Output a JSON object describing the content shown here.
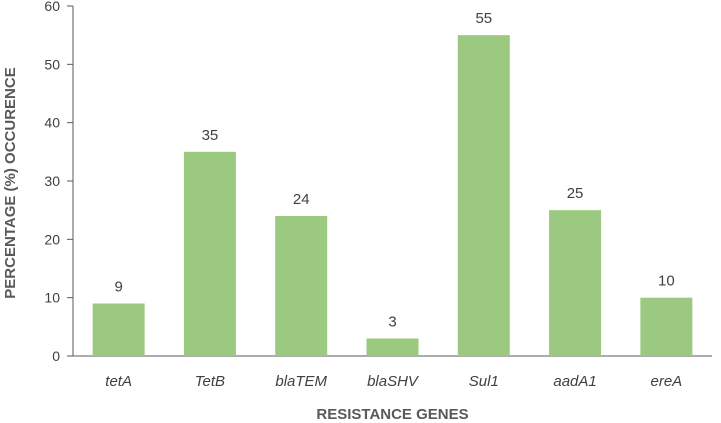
{
  "chart_data": {
    "type": "bar",
    "title": "",
    "xlabel": "RESISTANCE GENES",
    "ylabel": "PERCENTAGE (%) OCCURENCE",
    "categories": [
      "tetA",
      "TetB",
      "blaTEM",
      "blaSHV",
      "Sul1",
      "aadA1",
      "ereA"
    ],
    "values": [
      9,
      35,
      24,
      3,
      55,
      25,
      10
    ],
    "ylim": [
      0,
      60
    ],
    "yticks": [
      0,
      10,
      20,
      30,
      40,
      50,
      60
    ],
    "grid": false,
    "legend": "none",
    "bar_color": "#9bc97f",
    "axis_color": "#595959"
  }
}
